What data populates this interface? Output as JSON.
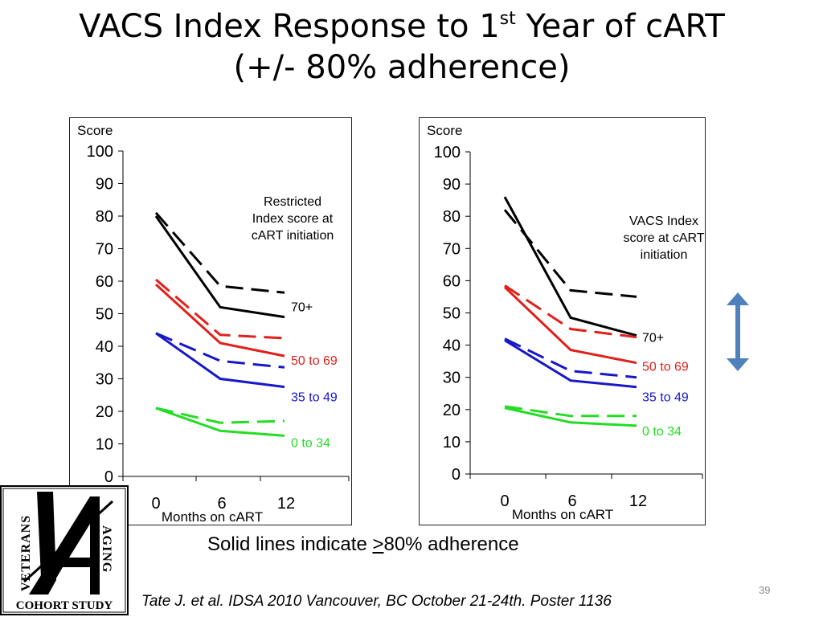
{
  "slide": {
    "title_line1_pre": "VACS Index Response to 1",
    "title_sup": "st",
    "title_line1_post": " Year of cART",
    "title_line2": "(+/- 80% adherence)",
    "caption_pre": "Solid lines indicate ",
    "caption_underlined": ">",
    "caption_post": "80% adherence",
    "citation": "Tate J. et al.  IDSA 2010  Vancouver, BC October 21-24th. Poster 1136",
    "page_number": "39",
    "arrow_color": "#4f81bd"
  },
  "logo": {
    "text_vertical_left": "VETERANS",
    "text_vertical_right": "AGING",
    "text_bottom": "COHORT STUDY"
  },
  "chart_data": [
    {
      "type": "line",
      "ylabel": "Score",
      "xlabel": "Months on cART",
      "annotation": [
        "Restricted",
        "Index score at",
        "cART initiation"
      ],
      "x": [
        0,
        6,
        12
      ],
      "ylim": [
        0,
        100
      ],
      "yticks": [
        0,
        10,
        20,
        30,
        40,
        50,
        60,
        70,
        80,
        90,
        100
      ],
      "series": [
        {
          "name": "70+",
          "color": "#000000",
          "solid": [
            80,
            52,
            49
          ],
          "dashed": [
            81,
            58.5,
            56.5
          ]
        },
        {
          "name": "50 to 69",
          "color": "#e0201b",
          "solid": [
            59,
            41,
            37
          ],
          "dashed": [
            60.5,
            43.5,
            42.5
          ]
        },
        {
          "name": "35 to 49",
          "color": "#1717c8",
          "solid": [
            44,
            30,
            27.5
          ],
          "dashed": [
            44,
            35.5,
            33.5
          ]
        },
        {
          "name": "0 to 34",
          "color": "#22dd22",
          "solid": [
            21,
            14,
            12.5
          ],
          "dashed": [
            21,
            16.5,
            17
          ]
        }
      ]
    },
    {
      "type": "line",
      "ylabel": "Score",
      "xlabel": "Months on cART",
      "annotation": [
        "VACS Index",
        "score at cART",
        "initiation"
      ],
      "x": [
        0,
        6,
        12
      ],
      "ylim": [
        0,
        100
      ],
      "yticks": [
        0,
        10,
        20,
        30,
        40,
        50,
        60,
        70,
        80,
        90,
        100
      ],
      "series": [
        {
          "name": "70+",
          "color": "#000000",
          "solid": [
            86,
            48.5,
            43
          ],
          "dashed": [
            82,
            57,
            55
          ]
        },
        {
          "name": "50 to 69",
          "color": "#e0201b",
          "solid": [
            58,
            38.5,
            34.5
          ],
          "dashed": [
            58.5,
            45,
            42.5
          ]
        },
        {
          "name": "35 to 49",
          "color": "#1717c8",
          "solid": [
            41.5,
            29,
            27
          ],
          "dashed": [
            42,
            32,
            30
          ]
        },
        {
          "name": "0 to 34",
          "color": "#22dd22",
          "solid": [
            20.5,
            16,
            15
          ],
          "dashed": [
            21,
            18,
            18
          ]
        }
      ]
    }
  ]
}
